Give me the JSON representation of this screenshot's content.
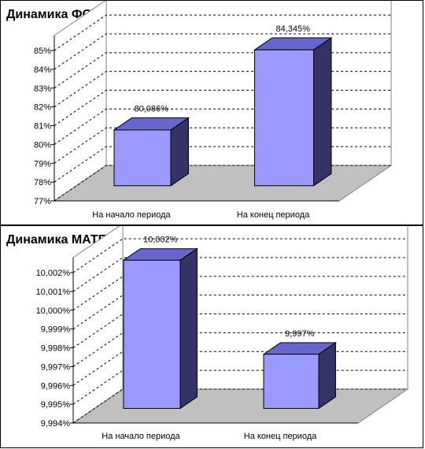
{
  "chart_data": [
    {
      "type": "bar",
      "title": "Динамика ФОНДООТДАЧИ за отчетный период",
      "categories": [
        "На начало периода",
        "На конец периода"
      ],
      "values": [
        80.086,
        84.345
      ],
      "value_labels": [
        "80,086%",
        "84,345%"
      ],
      "y_ticks": [
        "77%",
        "78%",
        "79%",
        "80%",
        "81%",
        "82%",
        "83%",
        "84%",
        "85%"
      ],
      "ylim": [
        77,
        85.8
      ],
      "grid": true,
      "bar_color": "#9999ff"
    },
    {
      "type": "bar",
      "title": "Динамика МАТЕРИАЛОЕМКОСТИ за отч. период",
      "categories": [
        "На начало периода",
        "На конец периода"
      ],
      "values": [
        10.002,
        9.997
      ],
      "value_labels": [
        "10,002%",
        "9,997%"
      ],
      "y_ticks": [
        "9,994%",
        "9,995%",
        "9,996%",
        "9,997%",
        "9,998%",
        "9,999%",
        "10,000%",
        "10,001%",
        "10,002%"
      ],
      "ylim": [
        9.994,
        10.0028
      ],
      "grid": true,
      "bar_color": "#9999ff"
    }
  ]
}
